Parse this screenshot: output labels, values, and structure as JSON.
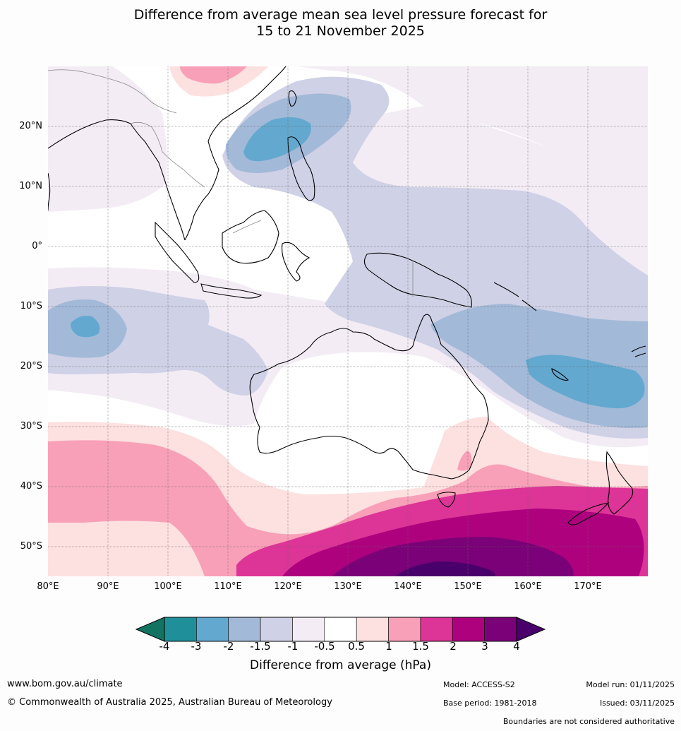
{
  "title": {
    "line1": "Difference from average mean sea level pressure forecast for",
    "line2": "15 to 21 November 2025"
  },
  "map": {
    "lat_labels": [
      "20°N",
      "10°N",
      "0°",
      "10°S",
      "20°S",
      "30°S",
      "40°S",
      "50°S"
    ],
    "lon_labels": [
      "80°E",
      "90°E",
      "100°E",
      "110°E",
      "120°E",
      "130°E",
      "140°E",
      "150°E",
      "160°E",
      "170°E"
    ],
    "extent": {
      "lon_min": 80,
      "lon_max": 180,
      "lat_min": -55,
      "lat_max": 30
    }
  },
  "colorbar": {
    "tick_labels": [
      "-4",
      "-3",
      "-2",
      "-1.5",
      "-1",
      "-0.5",
      "0.5",
      "1",
      "1.5",
      "2",
      "3",
      "4"
    ],
    "colors": [
      "#127360",
      "#1f9099",
      "#63a8cf",
      "#a3b9d8",
      "#cfd1e6",
      "#f3ecf5",
      "#ffffff",
      "#fde0e0",
      "#f8a0b8",
      "#dd3497",
      "#ae017e",
      "#7a0177",
      "#49006a"
    ],
    "title": "Difference from average (hPa)"
  },
  "footer": {
    "website": "www.bom.gov.au/climate",
    "copyright": "© Commonwealth of Australia 2025, Australian Bureau of Meteorology",
    "model": "Model: ACCESS-S2",
    "base_period": "Base period: 1981-2018",
    "model_run": "Model run: 01/11/2025",
    "issued": "Issued: 03/11/2025",
    "disclaimer": "Boundaries are not considered authoritative"
  }
}
